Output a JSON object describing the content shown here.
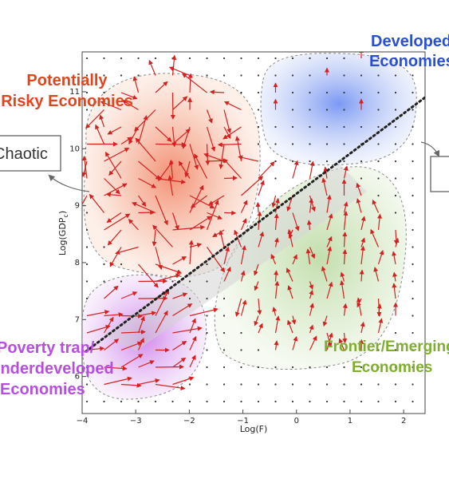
{
  "x_axis": {
    "label": "Log(F)",
    "range": [
      -4,
      2.4
    ],
    "ticks": [
      -4,
      -3,
      -2,
      -1,
      0,
      1,
      2
    ],
    "tick_labels": [
      "−4",
      "−3",
      "−2",
      "−1",
      "0",
      "1",
      "2"
    ]
  },
  "y_axis": {
    "label": "Log(GDP",
    "label_sub": "c",
    "label_close": ")",
    "range": [
      5.35,
      11.7
    ],
    "ticks": [
      6,
      7,
      8,
      9,
      10,
      11
    ],
    "tick_labels": [
      "6",
      "7",
      "8",
      "9",
      "10",
      "11"
    ]
  },
  "regions": {
    "risky": {
      "line1": "Potentially",
      "line2": "Risky Economies",
      "color": "#e0451e",
      "fill": "#f07a55"
    },
    "developed": {
      "line1": "Developed",
      "line2": "Economies",
      "color": "#2a4fd6",
      "fill": "#6f8ef0"
    },
    "frontier": {
      "line1": "Frontier/Emerging",
      "line2": "Economies",
      "color": "#7fae2e",
      "fill": "#b9d99a"
    },
    "poverty": {
      "line1": "Poverty trap/",
      "line2": "Underdeveloped",
      "line3": "Economies",
      "color": "#b64fe0",
      "fill": "#c98ae8"
    }
  },
  "callouts": {
    "left_box": "Chaotic",
    "right_box": ""
  },
  "colors": {
    "arrow": "#d42020",
    "dots": "#333333",
    "diagonal": "#222222"
  }
}
